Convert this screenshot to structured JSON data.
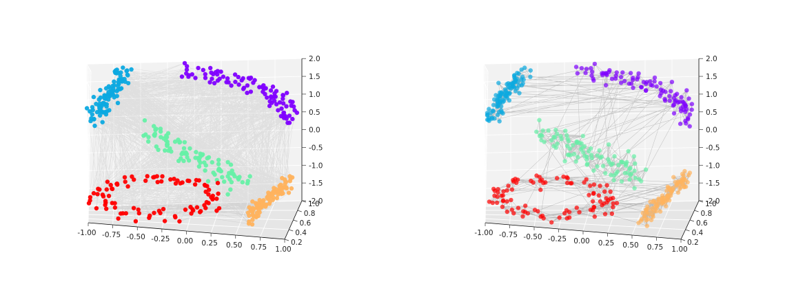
{
  "chart_data": [
    {
      "type": "scatter",
      "subtype": "3d-scatter-with-graph-edges",
      "panel": "left",
      "xlim": [
        -1.0,
        1.0
      ],
      "ylim": [
        0.2,
        1.0
      ],
      "zlim": [
        -2.0,
        2.0
      ],
      "x_ticks": [
        "-1.00",
        "-0.75",
        "-0.50",
        "-0.25",
        "0.00",
        "0.25",
        "0.50",
        "0.75",
        "1.00"
      ],
      "y_ticks": [
        "0.2",
        "0.4",
        "0.6",
        "0.8",
        "1.0"
      ],
      "z_ticks": [
        "-2.0",
        "-1.5",
        "-1.0",
        "-0.5",
        "0.0",
        "0.5",
        "1.0",
        "1.5",
        "2.0"
      ],
      "grid": true,
      "edges": "dense random connections across all clusters",
      "clusters": [
        {
          "color": "#0ca9e0",
          "x_range": [
            -1.0,
            -0.6
          ],
          "z_range": [
            0.6,
            2.0
          ]
        },
        {
          "color": "#7f00ff",
          "x_range": [
            -0.2,
            1.0
          ],
          "z_range": [
            0.6,
            2.2
          ]
        },
        {
          "color": "#66f0a6",
          "x_range": [
            -0.5,
            0.5
          ],
          "z_range": [
            -1.2,
            0.6
          ]
        },
        {
          "color": "#ff0000",
          "x_range": [
            -1.0,
            0.35
          ],
          "z_range": [
            -2.2,
            -0.8
          ]
        },
        {
          "color": "#ffb35e",
          "x_range": [
            0.35,
            1.0
          ],
          "z_range": [
            -2.0,
            -1.0
          ]
        }
      ]
    },
    {
      "type": "scatter",
      "subtype": "3d-scatter-with-graph-edges",
      "panel": "right",
      "xlim": [
        -1.0,
        1.0
      ],
      "ylim": [
        0.2,
        1.0
      ],
      "zlim": [
        -2.0,
        2.0
      ],
      "x_ticks": [
        "-1.00",
        "-0.75",
        "-0.50",
        "-0.25",
        "0.00",
        "0.25",
        "0.50",
        "0.75",
        "1.00"
      ],
      "y_ticks": [
        "0.2",
        "0.4",
        "0.6",
        "0.8",
        "1.0"
      ],
      "z_ticks": [
        "-2.0",
        "-1.5",
        "-1.0",
        "-0.5",
        "0.0",
        "0.5",
        "1.0",
        "1.5",
        "2.0"
      ],
      "grid": true,
      "edges": "sparse local connections along the curve",
      "clusters": [
        {
          "color": "#0ca9e0",
          "x_range": [
            -1.0,
            -0.6
          ],
          "z_range": [
            0.6,
            2.0
          ]
        },
        {
          "color": "#7f00ff",
          "x_range": [
            -0.2,
            1.0
          ],
          "z_range": [
            0.6,
            2.2
          ]
        },
        {
          "color": "#66f0a6",
          "x_range": [
            -0.5,
            0.5
          ],
          "z_range": [
            -1.2,
            0.6
          ]
        },
        {
          "color": "#ff0000",
          "x_range": [
            -1.0,
            0.35
          ],
          "z_range": [
            -2.2,
            -0.8
          ]
        },
        {
          "color": "#ffb35e",
          "x_range": [
            0.35,
            1.0
          ],
          "z_range": [
            -2.0,
            -1.0
          ]
        }
      ]
    }
  ]
}
